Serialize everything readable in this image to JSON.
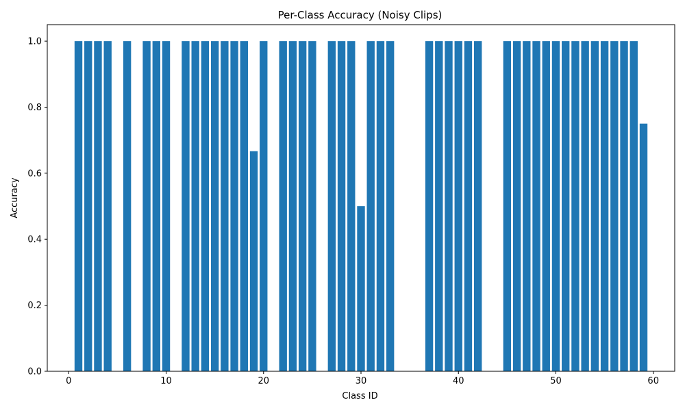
{
  "chart_data": {
    "type": "bar",
    "title": "Per-Class Accuracy (Noisy Clips)",
    "xlabel": "Class ID",
    "ylabel": "Accuracy",
    "xlim": [
      -2.2,
      62.2
    ],
    "ylim": [
      0,
      1.05
    ],
    "xticks": [
      0,
      10,
      20,
      30,
      40,
      50,
      60
    ],
    "xtick_labels": [
      "0",
      "10",
      "20",
      "30",
      "40",
      "50",
      "60"
    ],
    "yticks": [
      0.0,
      0.2,
      0.4,
      0.6,
      0.8,
      1.0
    ],
    "ytick_labels": [
      "0.0",
      "0.2",
      "0.4",
      "0.6",
      "0.8",
      "1.0"
    ],
    "grid": false,
    "bar_color": "#1f77b4",
    "x": [
      1,
      2,
      3,
      4,
      6,
      8,
      9,
      10,
      12,
      13,
      14,
      15,
      16,
      17,
      18,
      19,
      20,
      22,
      23,
      24,
      25,
      27,
      28,
      29,
      30,
      31,
      32,
      33,
      37,
      38,
      39,
      40,
      41,
      42,
      45,
      46,
      47,
      48,
      49,
      50,
      51,
      52,
      53,
      54,
      55,
      56,
      57,
      58,
      59
    ],
    "values": [
      1.0,
      1.0,
      1.0,
      1.0,
      1.0,
      1.0,
      1.0,
      1.0,
      1.0,
      1.0,
      1.0,
      1.0,
      1.0,
      1.0,
      1.0,
      0.6667,
      1.0,
      1.0,
      1.0,
      1.0,
      1.0,
      1.0,
      1.0,
      1.0,
      0.5,
      1.0,
      1.0,
      1.0,
      1.0,
      1.0,
      1.0,
      1.0,
      1.0,
      1.0,
      1.0,
      1.0,
      1.0,
      1.0,
      1.0,
      1.0,
      1.0,
      1.0,
      1.0,
      1.0,
      1.0,
      1.0,
      1.0,
      1.0,
      0.75
    ]
  }
}
